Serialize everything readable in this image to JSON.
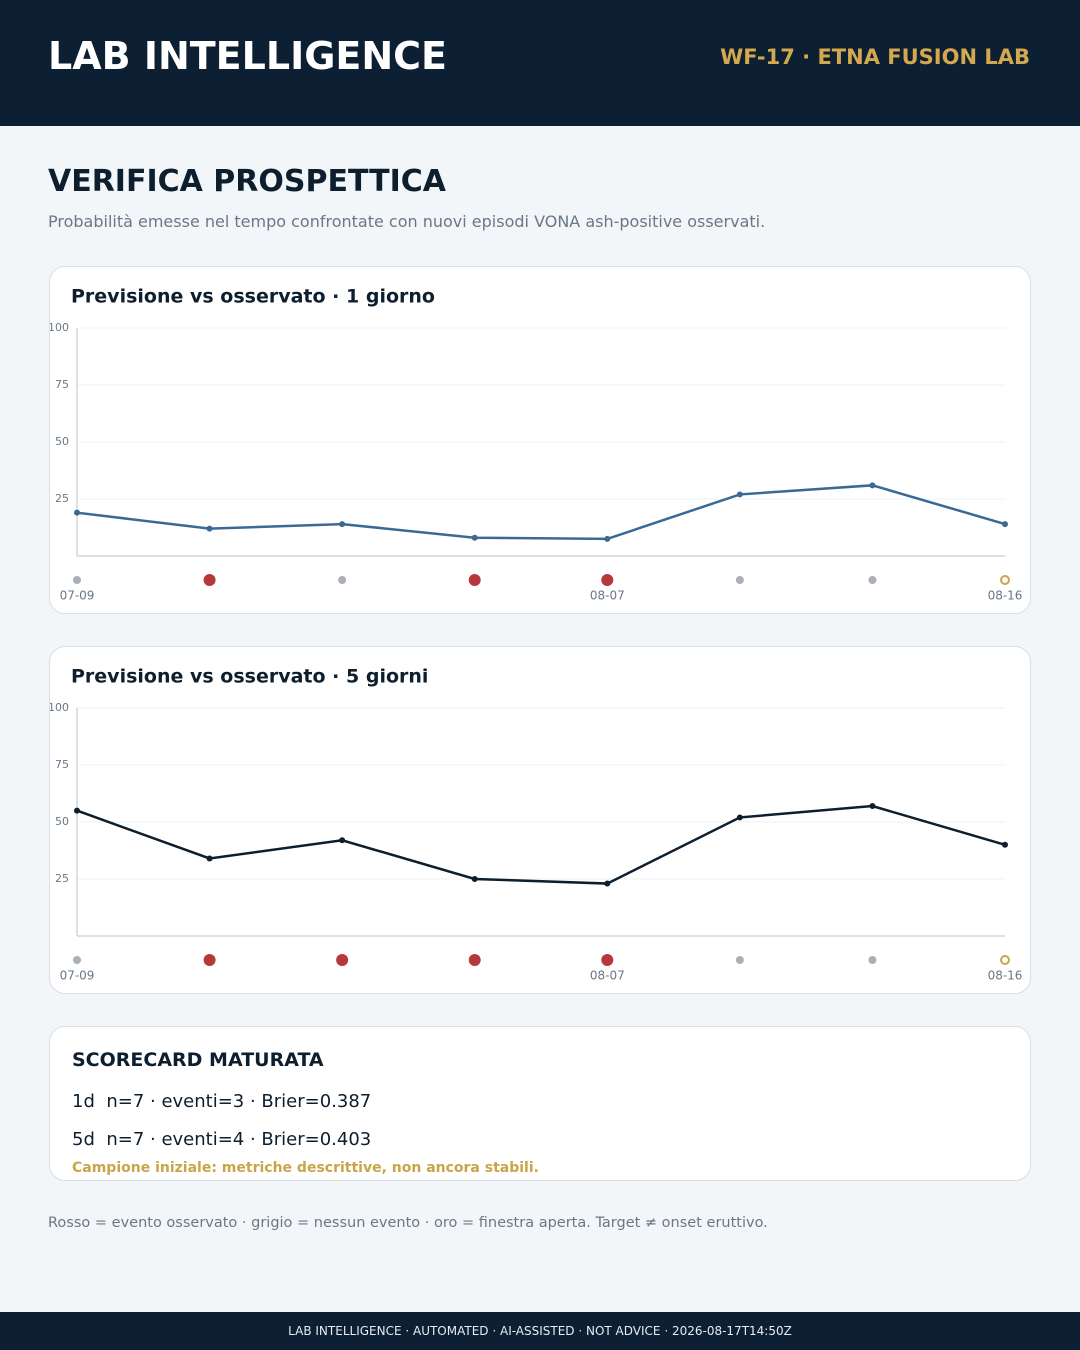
{
  "header": {
    "title": "LAB INTELLIGENCE",
    "tag": "WF-17 · ETNA FUSION LAB"
  },
  "section": {
    "title": "VERIFICA PROSPETTICA",
    "subtitle": "Probabilità emesse nel tempo confrontate con nuovi episodi VONA ash-positive osservati."
  },
  "chart_data": [
    {
      "type": "line",
      "title": "Previsione vs osservato · 1 giorno",
      "categories": [
        "07-09",
        null,
        null,
        null,
        "08-07",
        null,
        null,
        "08-16"
      ],
      "values": [
        19,
        12,
        14,
        8,
        7.5,
        27,
        31,
        14
      ],
      "color": "#3a6a93",
      "ylim": [
        0,
        100
      ],
      "yticks": [
        25,
        50,
        75,
        100
      ],
      "grid": true,
      "markers": [
        {
          "color": "#aab0b8",
          "event": false
        },
        {
          "color": "#b5393c",
          "event": true
        },
        {
          "color": "#aab0b8",
          "event": false
        },
        {
          "color": "#b5393c",
          "event": true
        },
        {
          "color": "#b5393c",
          "event": true
        },
        {
          "color": "#aab0b8",
          "event": false
        },
        {
          "color": "#aab0b8",
          "event": false
        },
        {
          "color": "#c9a54a",
          "event": false,
          "open": true
        }
      ]
    },
    {
      "type": "line",
      "title": "Previsione vs osservato · 5 giorni",
      "categories": [
        "07-09",
        null,
        null,
        null,
        "08-07",
        null,
        null,
        "08-16"
      ],
      "values": [
        55,
        34,
        42,
        25,
        23,
        52,
        57,
        40
      ],
      "color": "#0d1e2e",
      "ylim": [
        0,
        100
      ],
      "yticks": [
        25,
        50,
        75,
        100
      ],
      "grid": true,
      "markers": [
        {
          "color": "#aab0b8",
          "event": false
        },
        {
          "color": "#b5393c",
          "event": true
        },
        {
          "color": "#b5393c",
          "event": true
        },
        {
          "color": "#b5393c",
          "event": true
        },
        {
          "color": "#b5393c",
          "event": true
        },
        {
          "color": "#aab0b8",
          "event": false
        },
        {
          "color": "#aab0b8",
          "event": false
        },
        {
          "color": "#c9a54a",
          "event": false,
          "open": true
        }
      ]
    }
  ],
  "scorecard": {
    "title": "SCORECARD MATURATA",
    "rows": [
      {
        "horizon": "1d",
        "text": "n=7 · eventi=3 · Brier=0.387"
      },
      {
        "horizon": "5d",
        "text": "n=7 · eventi=4 · Brier=0.403"
      }
    ],
    "note": "Campione iniziale: metriche descrittive, non ancora stabili."
  },
  "legend_note": "Rosso = evento osservato · grigio = nessun evento · oro = finestra aperta. Target ≠ onset eruttivo.",
  "footer": "LAB INTELLIGENCE · AUTOMATED · AI-ASSISTED · NOT ADVICE · 2026-08-17T14:50Z"
}
